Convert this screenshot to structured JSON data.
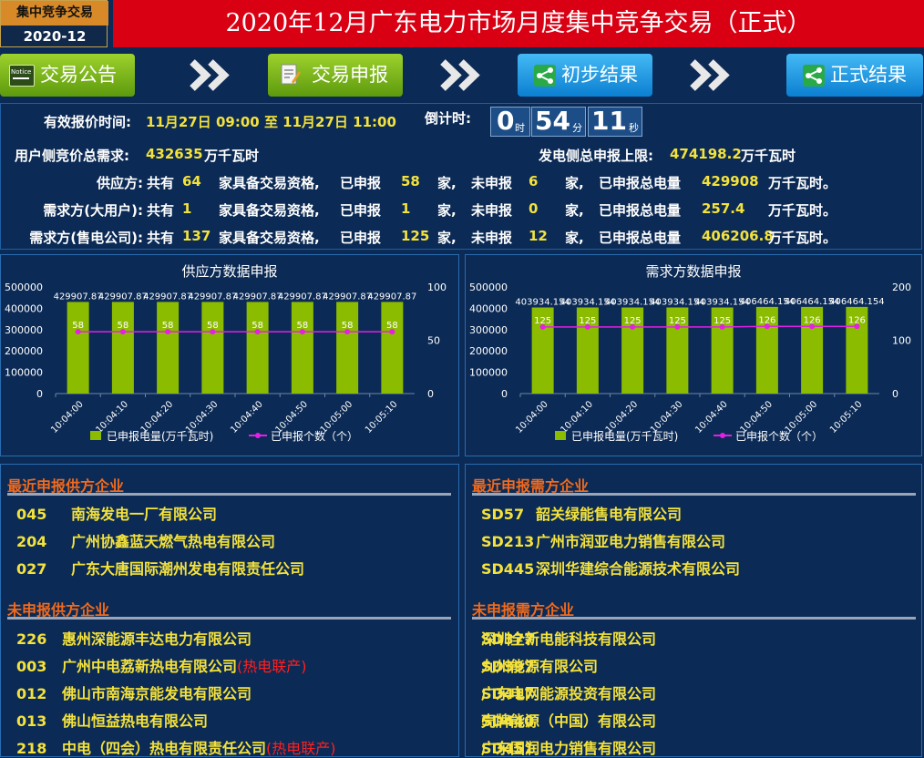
{
  "header": {
    "badge_title": "集中竞争交易",
    "badge_period": "2020-12",
    "title": "2020年12月广东电力市场月度集中竞争交易（正式）"
  },
  "nav": {
    "announcement": {
      "label": "交易公告",
      "icon_text": "Notice"
    },
    "declare": {
      "label": "交易申报"
    },
    "preliminary": {
      "label": "初步结果"
    },
    "official": {
      "label": "正式结果"
    }
  },
  "info": {
    "time_label": "有效报价时间:",
    "time_value": "11月27日 09:00 至 11月27日 11:00",
    "countdown_label": "倒计时:",
    "countdown": {
      "hours": "0",
      "hours_unit": "时",
      "minutes": "54",
      "minutes_unit": "分",
      "seconds": "11",
      "seconds_unit": "秒"
    },
    "demand_label": "用户侧竞价总需求:",
    "demand_value": "432635",
    "demand_unit": "万千瓦时",
    "supply_label": "发电侧总申报上限:",
    "supply_value": "474198.2",
    "supply_unit": "万千瓦时",
    "rows": [
      {
        "label": "供应方:",
        "total": "64",
        "declared": "58",
        "undeclared": "6",
        "energy": "429908",
        "tail": "万千瓦时。"
      },
      {
        "label": "需求方(大用户):",
        "total": "1",
        "declared": "1",
        "undeclared": "0",
        "energy": "257.4",
        "tail": "万千瓦时。"
      },
      {
        "label": "需求方(售电公司):",
        "total": "137",
        "declared": "125",
        "undeclared": "12",
        "energy": "406206.8",
        "tail": "万千瓦时。"
      }
    ],
    "w_total": "共有",
    "w_qual": "家具备交易资格,",
    "w_declared": "已申报",
    "w_home": "家,",
    "w_undeclared": "未申报",
    "w_energy": "已申报总电量"
  },
  "chart_data": [
    {
      "type": "bar",
      "title": "供应方数据申报",
      "categories": [
        "10:04:00",
        "10:04:10",
        "10:04:20",
        "10:04:30",
        "10:04:40",
        "10:04:50",
        "10:05:00",
        "10:05:10"
      ],
      "series": [
        {
          "name": "已申报电量(万千瓦时)",
          "type": "bar",
          "axis": "left",
          "values": [
            429907.87,
            429907.87,
            429907.87,
            429907.87,
            429907.87,
            429907.87,
            429907.87,
            429907.87
          ],
          "labels": [
            "429907.87",
            "429907.87",
            "429907.87",
            "429907.87",
            "429907.87",
            "429907.87",
            "429907.87",
            "429907.87"
          ],
          "color": "#8cbc00"
        },
        {
          "name": "已申报个数（个）",
          "type": "line",
          "axis": "right",
          "values": [
            58,
            58,
            58,
            58,
            58,
            58,
            58,
            58
          ],
          "color": "#e61ee6"
        }
      ],
      "left_ticks": [
        "500000",
        "400000",
        "300000",
        "200000",
        "100000",
        "0"
      ],
      "ylim": [
        0,
        500000
      ],
      "right_ticks": [
        "100",
        "50",
        "0"
      ],
      "y2lim": [
        0,
        100
      ]
    },
    {
      "type": "bar",
      "title": "需求方数据申报",
      "categories": [
        "10:04:00",
        "10:04:10",
        "10:04:20",
        "10:04:30",
        "10:04:40",
        "10:04:50",
        "10:05:00",
        "10:05:10"
      ],
      "series": [
        {
          "name": "已申报电量(万千瓦时)",
          "type": "bar",
          "axis": "left",
          "values": [
            403934.154,
            403934.154,
            403934.154,
            403934.154,
            403934.154,
            406464.154,
            406464.154,
            406464.154
          ],
          "labels": [
            "403934.154",
            "403934.154",
            "403934.154",
            "403934.154",
            "403934.154",
            "406464.154",
            "406464.154",
            "406464.154"
          ],
          "color": "#8cbc00"
        },
        {
          "name": "已申报个数（个）",
          "type": "line",
          "axis": "right",
          "values": [
            125,
            125,
            125,
            125,
            125,
            126,
            126,
            126
          ],
          "color": "#e61ee6"
        }
      ],
      "left_ticks": [
        "500000",
        "400000",
        "300000",
        "200000",
        "100000",
        "0"
      ],
      "ylim": [
        0,
        500000
      ],
      "right_ticks": [
        "200",
        "100",
        "0"
      ],
      "y2lim": [
        0,
        200
      ]
    }
  ],
  "recent_supply": {
    "title": "最近申报供方企业",
    "items": [
      {
        "code": "045",
        "name": "南海发电一厂有限公司"
      },
      {
        "code": "204",
        "name": "广州协鑫蓝天燃气热电有限公司"
      },
      {
        "code": "027",
        "name": "广东大唐国际潮州发电有限责任公司"
      }
    ]
  },
  "recent_demand": {
    "title": "最近申报需方企业",
    "items": [
      {
        "code": "SD57",
        "name": "韶关绿能售电有限公司"
      },
      {
        "code": "SD213",
        "name": "广州市润亚电力销售有限公司"
      },
      {
        "code": "SD445",
        "name": "深圳华建综合能源技术有限公司"
      }
    ]
  },
  "undeclared_supply": {
    "title": "未申报供方企业",
    "items": [
      {
        "code": "226",
        "name": "惠州深能源丰达电力有限公司",
        "tag": ""
      },
      {
        "code": "003",
        "name": "广州中电荔新热电有限公司",
        "tag": "(热电联产)"
      },
      {
        "code": "012",
        "name": "佛山市南海京能发电有限公司",
        "tag": ""
      },
      {
        "code": "013",
        "name": "佛山恒益热电有限公司",
        "tag": ""
      },
      {
        "code": "218",
        "name": "中电（四会）热电有限责任公司",
        "tag": "(热电联产)"
      }
    ]
  },
  "undeclared_demand": {
    "title": "未申报需方企业",
    "items": [
      {
        "code": "SD377",
        "name": "深圳全新电能科技有限公司"
      },
      {
        "code": "SD397",
        "name": "九州能源有限公司"
      },
      {
        "code": "SD417",
        "name": "广东电网能源投资有限公司"
      },
      {
        "code": "SD440",
        "name": "壳牌能源（中国）有限公司"
      },
      {
        "code": "SD451",
        "name": "广东国润电力销售有限公司"
      }
    ]
  }
}
